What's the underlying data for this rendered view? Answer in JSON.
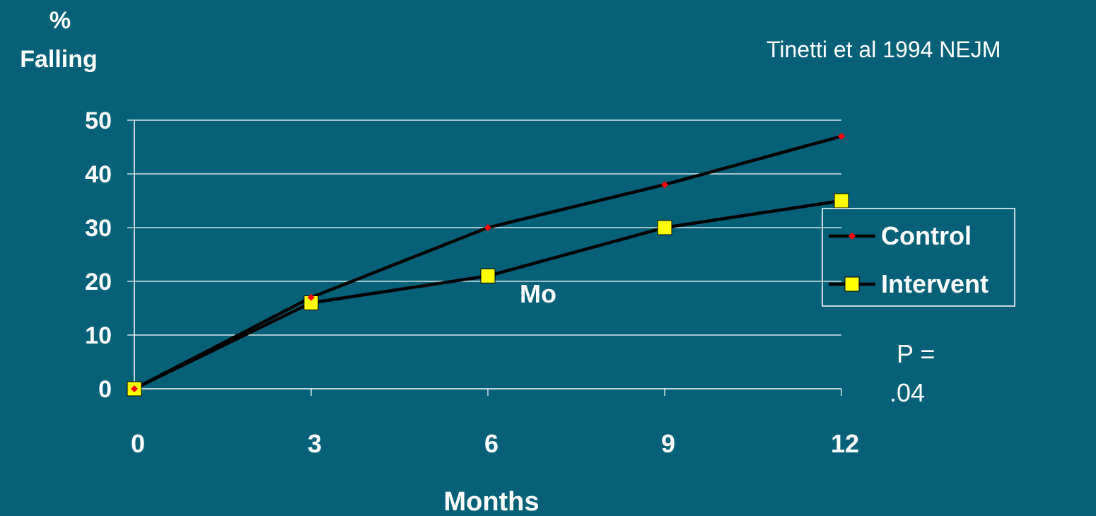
{
  "chart_data": {
    "type": "line",
    "ylabel_line1": "%",
    "ylabel_line2": "Falling",
    "xlabel": "Months",
    "citation": "Tinetti et al 1994 NEJM",
    "annotation": "Mo",
    "p_value_line1": "P =",
    "p_value_line2": ".04",
    "x": [
      0,
      3,
      6,
      9,
      12
    ],
    "x_ticks": [
      "0",
      "3",
      "6",
      "9",
      "12"
    ],
    "y_ticks": [
      "0",
      "10",
      "20",
      "30",
      "40",
      "50"
    ],
    "xlim": [
      0,
      12
    ],
    "ylim": [
      0,
      50
    ],
    "grid": true,
    "legend_position": "right",
    "series": [
      {
        "name": "Control",
        "values": [
          0,
          17,
          30,
          38,
          47
        ],
        "line_color": "#000000",
        "marker": "diamond",
        "marker_color": "#ff0000"
      },
      {
        "name": "Intervent",
        "values": [
          0,
          16,
          21,
          30,
          35
        ],
        "line_color": "#000000",
        "marker": "square",
        "marker_color": "#ffff00"
      }
    ],
    "colors": {
      "background": "#066178",
      "grid": "#ffffff",
      "text": "#ffffff"
    }
  }
}
